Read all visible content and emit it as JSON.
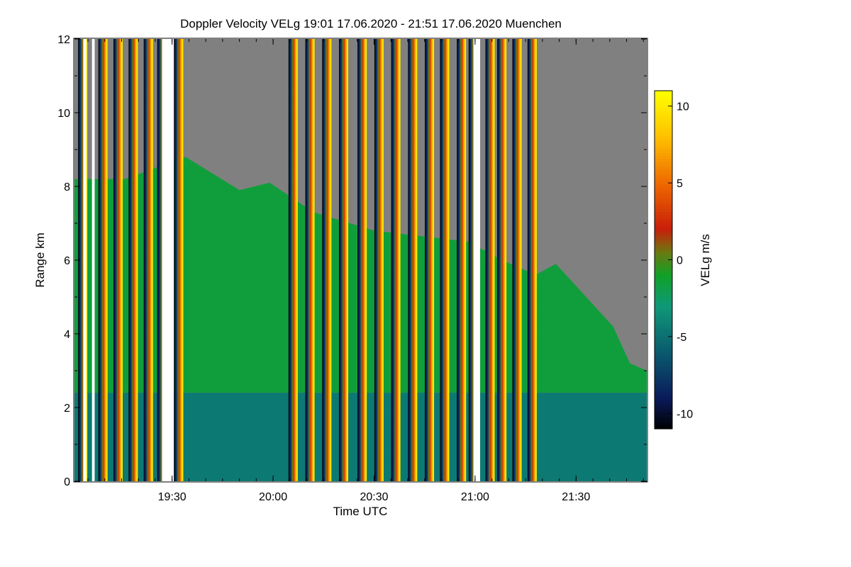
{
  "chart_data": {
    "type": "heatmap",
    "title": "Doppler Velocity VELg   19:01 17.06.2020 - 21:51 17.06.2020 Muenchen",
    "xlabel": "Time UTC",
    "ylabel": "Range km",
    "colorbar_label": "VELg m/s",
    "x_range_min": [
      1141,
      1311
    ],
    "y_range_km": [
      0,
      12
    ],
    "color_range_ms": [
      -11,
      11
    ],
    "x_ticks": [
      {
        "min": 1170,
        "label": "19:30"
      },
      {
        "min": 1200,
        "label": "20:00"
      },
      {
        "min": 1230,
        "label": "20:30"
      },
      {
        "min": 1260,
        "label": "21:00"
      },
      {
        "min": 1290,
        "label": "21:30"
      }
    ],
    "y_ticks": [
      {
        "km": 0,
        "label": "0"
      },
      {
        "km": 2,
        "label": "2"
      },
      {
        "km": 4,
        "label": "4"
      },
      {
        "km": 6,
        "label": "6"
      },
      {
        "km": 8,
        "label": "8"
      },
      {
        "km": 10,
        "label": "10"
      },
      {
        "km": 12,
        "label": "12"
      }
    ],
    "colorbar_ticks": [
      {
        "value": 10,
        "label": "10"
      },
      {
        "value": 5,
        "label": "5"
      },
      {
        "value": 0,
        "label": "0"
      },
      {
        "value": -5,
        "label": "-5"
      },
      {
        "value": -10,
        "label": "-10"
      }
    ],
    "colorscale": [
      {
        "value": -11,
        "color": "#000000"
      },
      {
        "value": -9,
        "color": "#0a1a5a"
      },
      {
        "value": -6,
        "color": "#0a5a6e"
      },
      {
        "value": -3,
        "color": "#109878"
      },
      {
        "value": -1,
        "color": "#10a028"
      },
      {
        "value": 0.5,
        "color": "#6a7a10"
      },
      {
        "value": 2,
        "color": "#c81e0a"
      },
      {
        "value": 5,
        "color": "#ee6a00"
      },
      {
        "value": 8,
        "color": "#ffc000"
      },
      {
        "value": 11,
        "color": "#ffff00"
      }
    ],
    "no_signal_color": "#808080",
    "background_layers": [
      {
        "name": "upper-layer-wind",
        "range_km": [
          2.4,
          8.3
        ],
        "velocity_ms": -1.5
      },
      {
        "name": "boundary-layer-wind",
        "range_km": [
          0,
          2.4
        ],
        "velocity_ms": -4.5
      }
    ],
    "cloud_top_km": [
      {
        "min": 1141,
        "km": 8.2
      },
      {
        "min": 1156,
        "km": 8.2
      },
      {
        "min": 1174,
        "km": 8.8
      },
      {
        "min": 1190,
        "km": 7.9
      },
      {
        "min": 1199,
        "km": 8.1
      },
      {
        "min": 1212,
        "km": 7.3
      },
      {
        "min": 1230,
        "km": 6.8
      },
      {
        "min": 1258,
        "km": 6.5
      },
      {
        "min": 1268,
        "km": 6.0
      },
      {
        "min": 1278,
        "km": 5.6
      },
      {
        "min": 1284,
        "km": 5.9
      },
      {
        "min": 1294,
        "km": 4.9
      },
      {
        "min": 1301,
        "km": 4.2
      },
      {
        "min": 1306,
        "km": 3.2
      },
      {
        "min": 1311,
        "km": 3.0
      }
    ],
    "data_gaps_min": [
      [
        1143.6,
        1144.5
      ],
      [
        1146.2,
        1147.0
      ],
      [
        1167.0,
        1170.5
      ],
      [
        1259.5,
        1261.5
      ]
    ],
    "scan_streak_times_min": [
      1142.5,
      1148.5,
      1153.0,
      1157.5,
      1162.0,
      1166.0,
      1171.0,
      1205.0,
      1210.0,
      1215.0,
      1220.0,
      1225.5,
      1230.5,
      1235.5,
      1240.5,
      1245.5,
      1250.0,
      1255.0,
      1258.5,
      1263.5,
      1267.0,
      1271.5,
      1276.0
    ]
  }
}
